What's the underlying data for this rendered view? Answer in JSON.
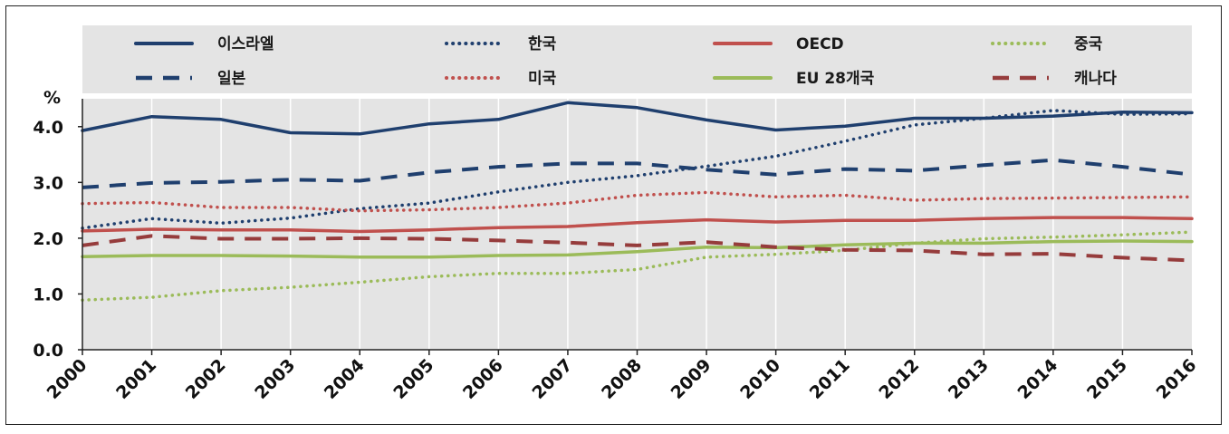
{
  "chart_data": {
    "type": "line",
    "ylabel": "%",
    "ylim": [
      0,
      4.5
    ],
    "yticks": [
      "0.0",
      "1.0",
      "2.0",
      "3.0",
      "4.0"
    ],
    "x": [
      "2000",
      "2001",
      "2002",
      "2003",
      "2004",
      "2005",
      "2006",
      "2007",
      "2008",
      "2009",
      "2010",
      "2011",
      "2012",
      "2013",
      "2014",
      "2015",
      "2016"
    ],
    "legend_position": "top",
    "series": [
      {
        "name": "이스라엘",
        "color": "#1f3f6e",
        "style": "solid",
        "values": [
          3.93,
          4.18,
          4.13,
          3.89,
          3.87,
          4.05,
          4.13,
          4.43,
          4.34,
          4.12,
          3.94,
          4.01,
          4.15,
          4.15,
          4.19,
          4.26,
          4.25
        ]
      },
      {
        "name": "한국",
        "color": "#1f3f6e",
        "style": "dotted",
        "values": [
          2.18,
          2.35,
          2.27,
          2.36,
          2.53,
          2.63,
          2.83,
          3.0,
          3.12,
          3.29,
          3.47,
          3.74,
          4.03,
          4.15,
          4.29,
          4.22,
          4.23
        ]
      },
      {
        "name": "OECD",
        "color": "#c0504d",
        "style": "solid",
        "values": [
          2.13,
          2.16,
          2.15,
          2.15,
          2.12,
          2.15,
          2.19,
          2.21,
          2.28,
          2.33,
          2.29,
          2.32,
          2.32,
          2.35,
          2.37,
          2.37,
          2.35
        ]
      },
      {
        "name": "중국",
        "color": "#9bbb59",
        "style": "dotted",
        "values": [
          0.89,
          0.94,
          1.06,
          1.12,
          1.21,
          1.31,
          1.37,
          1.37,
          1.44,
          1.66,
          1.71,
          1.78,
          1.91,
          1.99,
          2.02,
          2.06,
          2.11
        ]
      },
      {
        "name": "일본",
        "color": "#1f3f6e",
        "style": "dashed",
        "values": [
          2.91,
          2.99,
          3.01,
          3.05,
          3.03,
          3.18,
          3.28,
          3.34,
          3.34,
          3.23,
          3.14,
          3.24,
          3.21,
          3.31,
          3.4,
          3.28,
          3.14
        ]
      },
      {
        "name": "미국",
        "color": "#c0504d",
        "style": "dotted",
        "values": [
          2.62,
          2.64,
          2.55,
          2.55,
          2.49,
          2.51,
          2.55,
          2.63,
          2.77,
          2.82,
          2.74,
          2.77,
          2.68,
          2.71,
          2.72,
          2.73,
          2.74
        ]
      },
      {
        "name": "EU 28개국",
        "color": "#9bbb59",
        "style": "solid",
        "values": [
          1.67,
          1.69,
          1.69,
          1.68,
          1.66,
          1.66,
          1.69,
          1.7,
          1.76,
          1.84,
          1.83,
          1.88,
          1.91,
          1.91,
          1.94,
          1.95,
          1.94
        ]
      },
      {
        "name": "캐나다",
        "color": "#963c3c",
        "style": "dashed",
        "values": [
          1.87,
          2.04,
          1.99,
          1.99,
          2.0,
          1.99,
          1.96,
          1.92,
          1.87,
          1.93,
          1.84,
          1.79,
          1.78,
          1.71,
          1.72,
          1.65,
          1.6
        ]
      }
    ]
  }
}
